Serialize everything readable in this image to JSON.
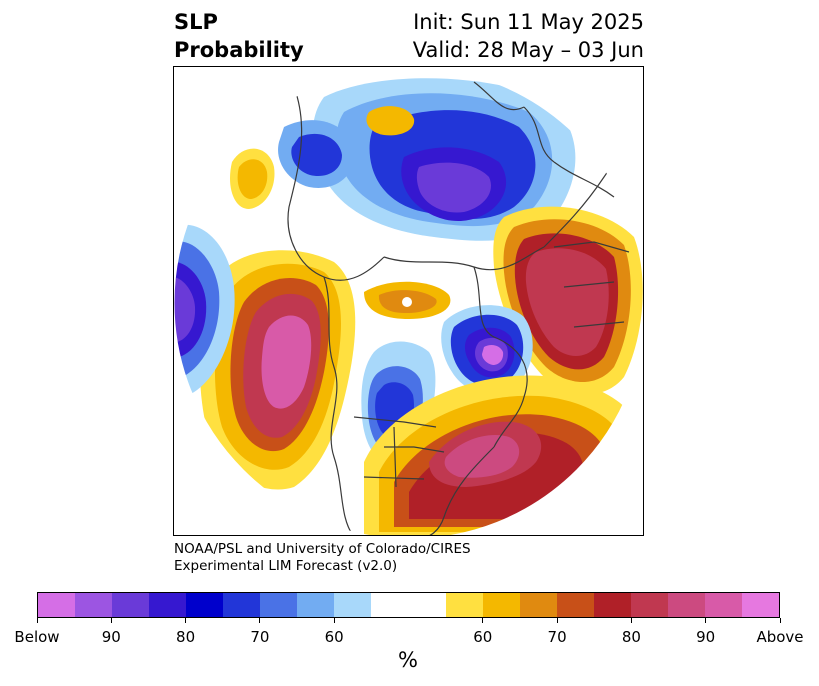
{
  "title": {
    "line1": "SLP",
    "line2": "Probability",
    "init": "Init: Sun 11 May 2025",
    "valid": "Valid: 28 May – 03 Jun"
  },
  "credit": {
    "line1": "NOAA/PSL and University of Colorado/CIRES",
    "line2": "Experimental LIM Forecast (v2.0)"
  },
  "colorbar": {
    "unit": "%",
    "below_colors": [
      "#d56ee6",
      "#9c55e2",
      "#6a3ad8",
      "#3618d0",
      "#0000cc",
      "#2236d8",
      "#4a72e6",
      "#72acf2",
      "#a8d8fa"
    ],
    "neutral_color": "#ffffff",
    "above_colors": [
      "#ffe040",
      "#f4b800",
      "#e08a10",
      "#c85018",
      "#b02028",
      "#c03850",
      "#cc4a80",
      "#d85aa8",
      "#e678e0"
    ],
    "tick_labels": [
      "Below",
      "90",
      "80",
      "70",
      "60",
      "60",
      "70",
      "80",
      "90",
      "Above"
    ]
  },
  "map": {
    "projection": "polar stereographic (north)",
    "features": [
      "coastlines",
      "country borders",
      "US state borders"
    ]
  }
}
